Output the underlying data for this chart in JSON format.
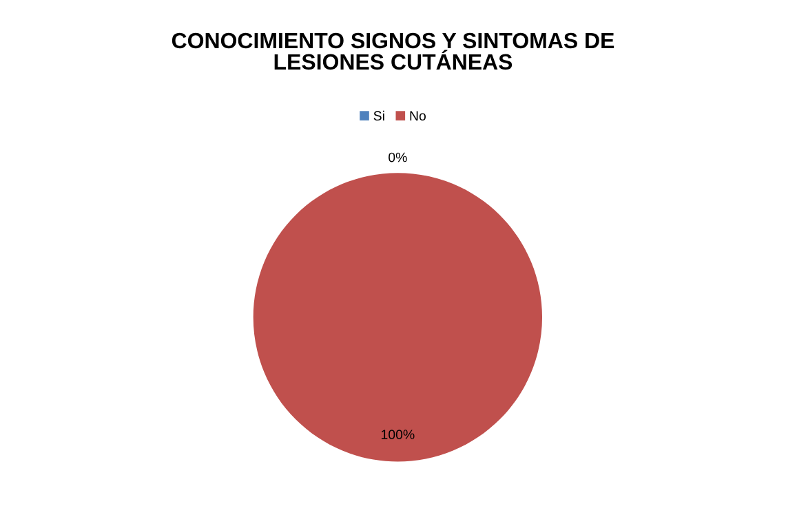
{
  "chart_data": {
    "type": "pie",
    "title": "CONOCIMIENTO SIGNOS Y SINTOMAS DE\nLESIONES CUTÁNEAS",
    "categories": [
      "Si",
      "No"
    ],
    "values": [
      0,
      100
    ],
    "colors": [
      "#4f81bd",
      "#c0504d"
    ],
    "value_labels": [
      "0%",
      "100%"
    ],
    "legend": "top"
  }
}
